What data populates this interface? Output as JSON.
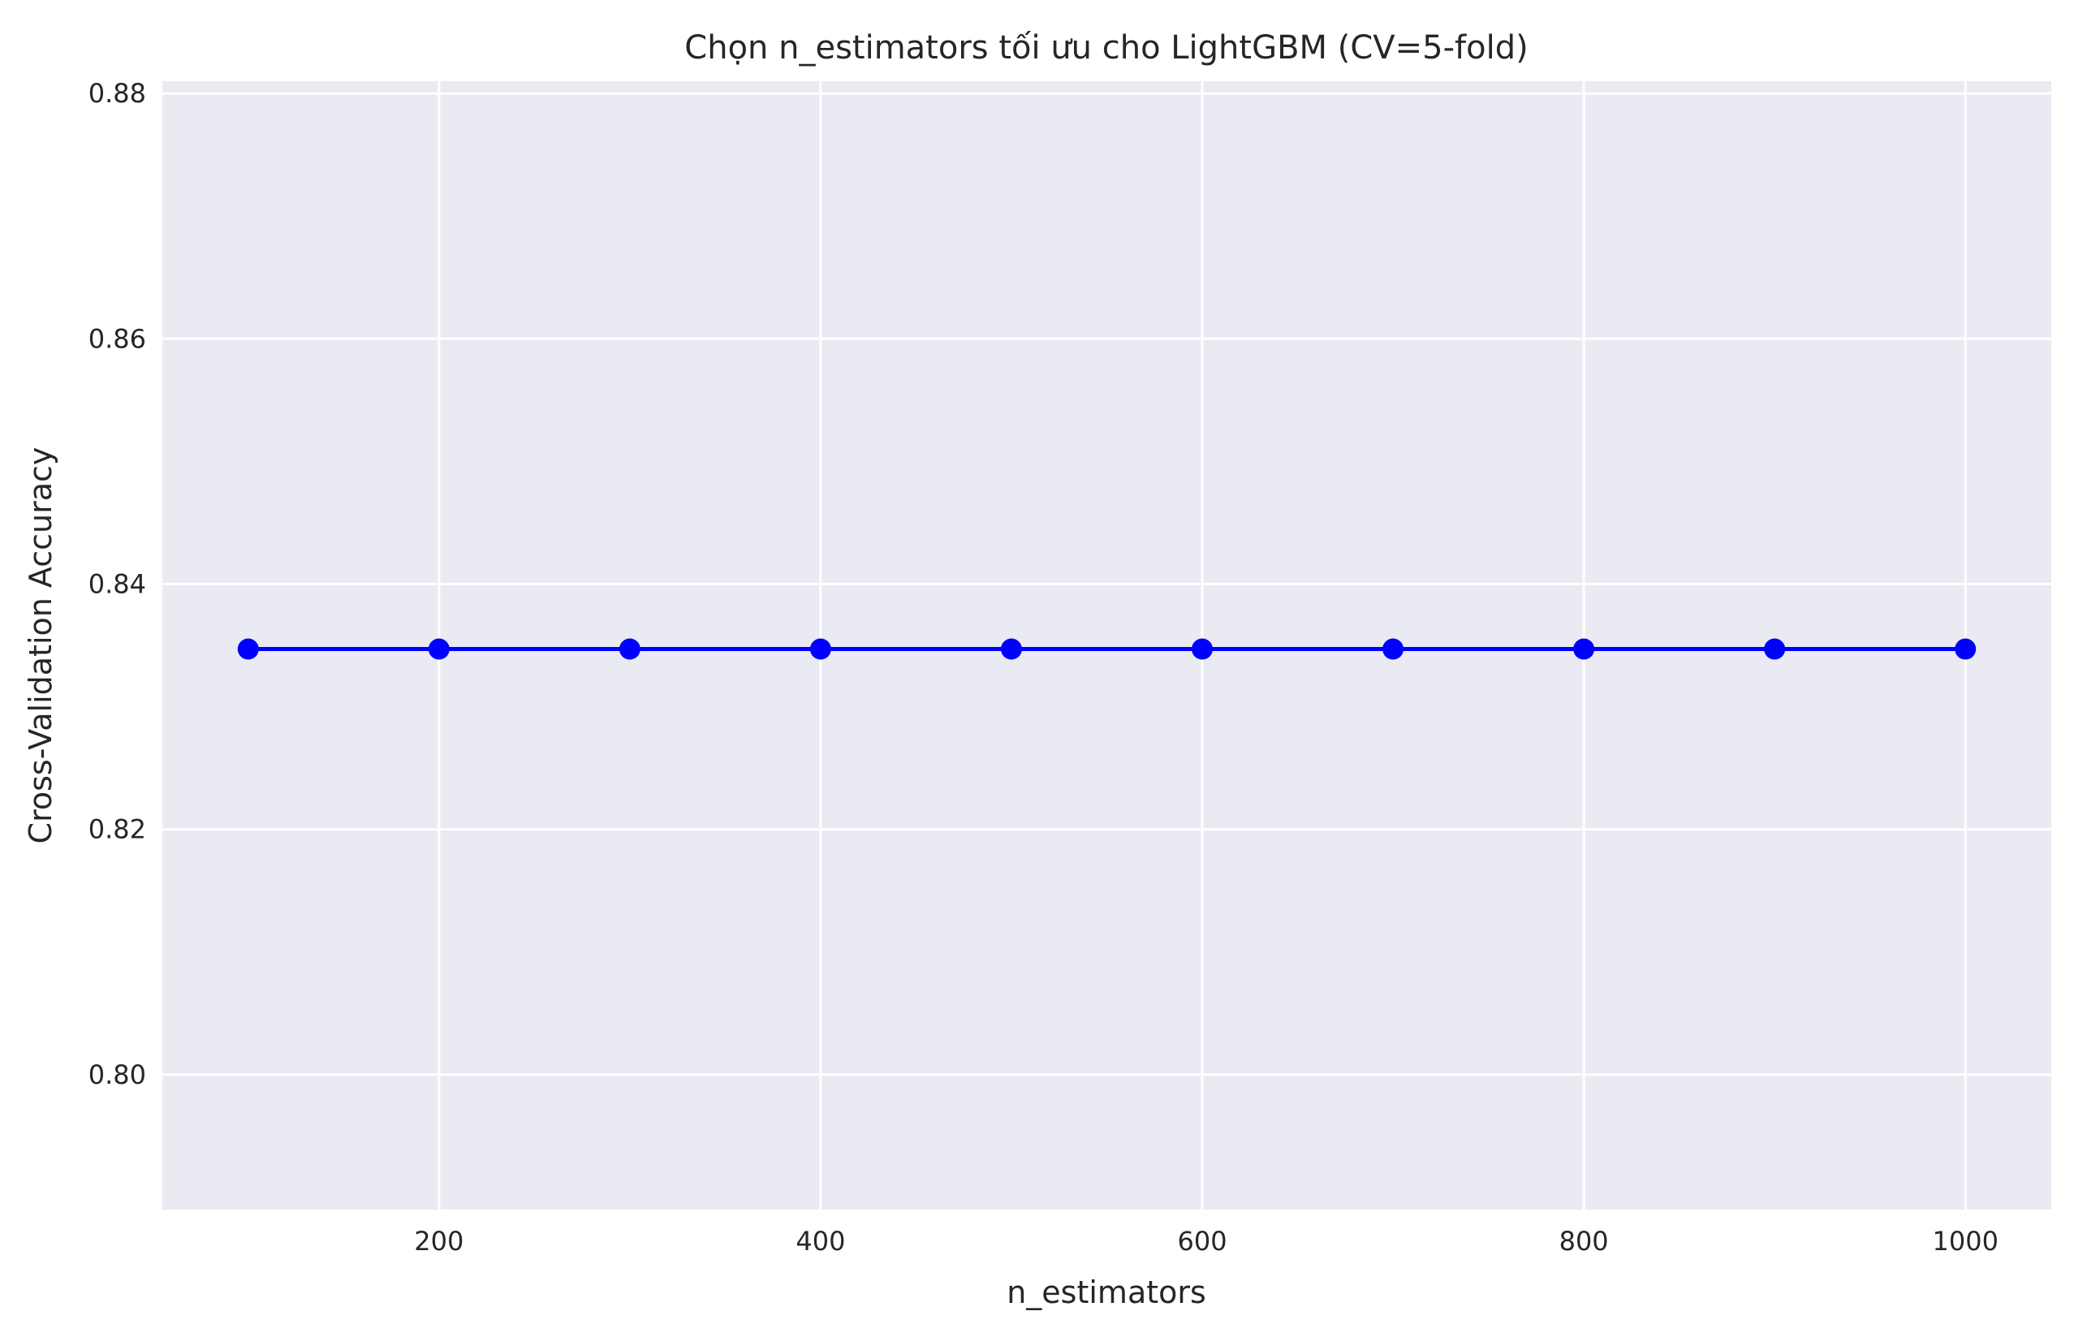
{
  "chart_data": {
    "type": "line",
    "title": "Chọn n_estimators tối ưu cho LightGBM (CV=5-fold)",
    "xlabel": "n_estimators",
    "ylabel": "Cross-Validation Accuracy",
    "x": [
      100,
      200,
      300,
      400,
      500,
      600,
      700,
      800,
      900,
      1000
    ],
    "series": [
      {
        "values": [
          0.8347,
          0.8347,
          0.8347,
          0.8347,
          0.8347,
          0.8347,
          0.8347,
          0.8347,
          0.8347,
          0.8347
        ],
        "color": "#0000ff",
        "marker": "circle"
      }
    ],
    "xlim": [
      55,
      1045
    ],
    "ylim": [
      0.789,
      0.881
    ],
    "xticks": [
      200,
      400,
      600,
      800,
      1000
    ],
    "yticks": [
      0.8,
      0.82,
      0.84,
      0.86,
      0.88
    ],
    "xtick_labels": [
      "200",
      "400",
      "600",
      "800",
      "1000"
    ],
    "ytick_labels": [
      "0.80",
      "0.82",
      "0.84",
      "0.86",
      "0.88"
    ],
    "grid": true,
    "background_color": "#eaeaf2",
    "grid_color": "#ffffff"
  }
}
